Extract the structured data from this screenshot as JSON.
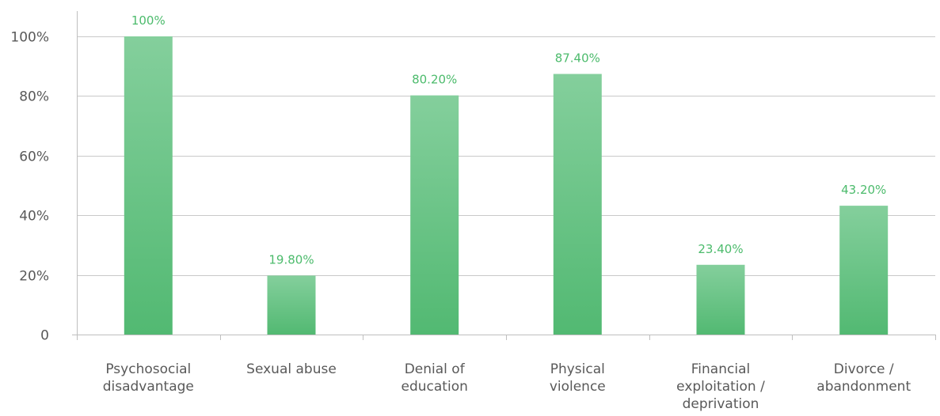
{
  "chart_data": {
    "type": "bar",
    "categories": [
      [
        "Psychosocial",
        "disadvantage"
      ],
      [
        "Sexual abuse"
      ],
      [
        "Denial of",
        "education"
      ],
      [
        "Physical",
        "violence"
      ],
      [
        "Financial",
        "exploitation /",
        "deprivation"
      ],
      [
        "Divorce /",
        "abandonment"
      ]
    ],
    "values": [
      100,
      19.8,
      80.2,
      87.4,
      23.4,
      43.2
    ],
    "data_labels": [
      "100%",
      "19.80%",
      "80.20%",
      "87.40%",
      "23.40%",
      "43.20%"
    ],
    "y_ticks": [
      {
        "value": 0,
        "label": "0"
      },
      {
        "value": 20,
        "label": "20%"
      },
      {
        "value": 40,
        "label": "40%"
      },
      {
        "value": 60,
        "label": "60%"
      },
      {
        "value": 80,
        "label": "80%"
      },
      {
        "value": 100,
        "label": "100%"
      }
    ],
    "ylim": [
      0,
      100
    ],
    "grid": true,
    "legend": "none",
    "colors": {
      "bar_top": "#84cf9c",
      "bar_bottom": "#52b972",
      "data_label": "#4cbb6c"
    }
  }
}
